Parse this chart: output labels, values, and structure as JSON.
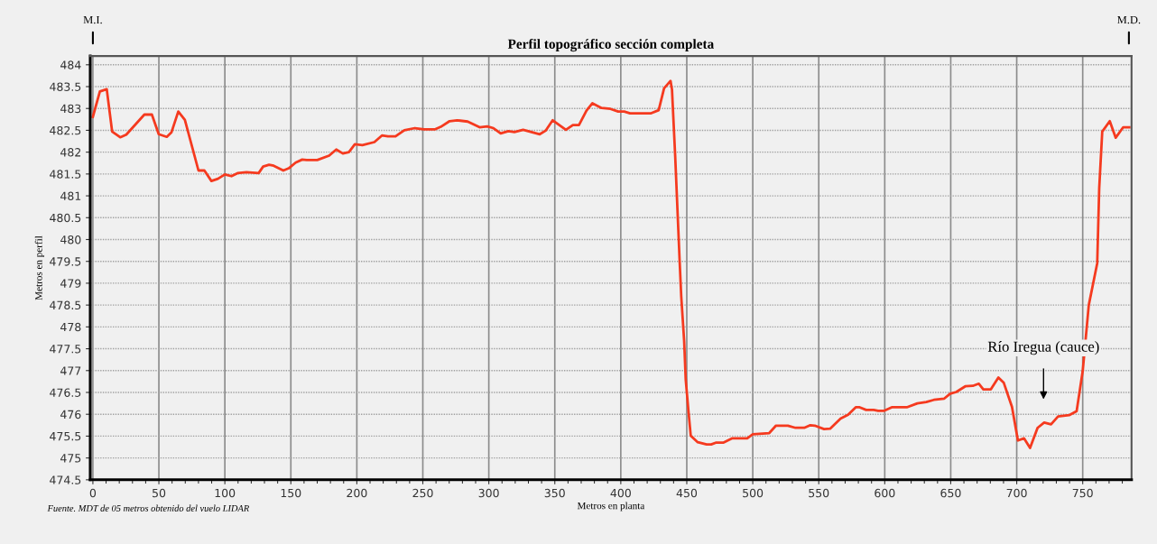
{
  "chart_data": {
    "type": "line",
    "title": "Perfil topográfico sección completa",
    "xlabel": "Metros en planta",
    "ylabel": "Metros en perfil",
    "x": [
      0,
      5.3,
      10.5,
      14.6,
      20.7,
      25.3,
      39,
      44.7,
      49.9,
      56,
      59.5,
      64.7,
      69.7,
      80,
      84.5,
      89.8,
      94.8,
      100,
      105,
      109.6,
      116.4,
      125.6,
      129,
      133.5,
      137,
      144.3,
      148.4,
      153.6,
      158.6,
      162,
      170,
      179,
      184.4,
      189.4,
      194,
      198.5,
      204.2,
      213.3,
      219,
      223.6,
      229.3,
      236,
      244,
      251,
      259,
      263.6,
      270.3,
      276,
      284,
      293,
      298.8,
      303.5,
      309,
      314.8,
      319.4,
      326,
      338.6,
      343,
      348.4,
      353.4,
      358.4,
      363.7,
      368.3,
      374,
      378.5,
      385.4,
      392.2,
      398,
      402.6,
      407,
      423,
      428.7,
      432.8,
      437.7,
      438.8,
      441.2,
      444.6,
      445.8,
      448,
      449.2,
      451.4,
      453,
      458.3,
      465,
      468.5,
      471.9,
      477.6,
      484.5,
      495.8,
      500,
      512.5,
      517.6,
      526.6,
      532.4,
      539,
      543.6,
      547,
      554,
      558.6,
      566.5,
      572.2,
      578,
      581,
      585.9,
      591.6,
      595,
      599.6,
      605.3,
      616.7,
      624.7,
      631.5,
      637.2,
      645.1,
      649.6,
      654.2,
      661,
      666.7,
      671.3,
      674.7,
      680.4,
      686.1,
      690.2,
      696.4,
      700.9,
      705.5,
      710.1,
      715.8,
      720.8,
      726,
      731.3,
      739.7,
      745.4,
      750,
      754.6,
      761,
      762.5,
      764.8,
      770.5,
      775,
      780.7,
      785.3
    ],
    "series": [
      {
        "color": "#f53a1f",
        "values": [
          482.81,
          483.39,
          483.44,
          482.47,
          482.34,
          482.4,
          482.86,
          482.86,
          482.41,
          482.35,
          482.45,
          482.93,
          482.74,
          481.58,
          481.58,
          481.34,
          481.39,
          481.49,
          481.45,
          481.52,
          481.54,
          481.52,
          481.67,
          481.71,
          481.69,
          481.58,
          481.63,
          481.76,
          481.83,
          481.82,
          481.82,
          481.92,
          482.06,
          481.97,
          482.0,
          482.18,
          482.16,
          482.23,
          482.38,
          482.36,
          482.36,
          482.5,
          482.55,
          482.52,
          482.52,
          482.58,
          482.71,
          482.73,
          482.7,
          482.57,
          482.59,
          482.55,
          482.43,
          482.48,
          482.46,
          482.51,
          482.41,
          482.49,
          482.73,
          482.62,
          482.51,
          482.62,
          482.62,
          482.95,
          483.12,
          483.01,
          482.99,
          482.93,
          482.93,
          482.89,
          482.89,
          482.96,
          483.46,
          483.63,
          483.43,
          481.92,
          479.5,
          478.7,
          477.68,
          476.79,
          476.03,
          475.51,
          475.36,
          475.31,
          475.31,
          475.35,
          475.35,
          475.45,
          475.45,
          475.54,
          475.57,
          475.74,
          475.74,
          475.69,
          475.69,
          475.75,
          475.74,
          475.66,
          475.67,
          475.9,
          475.99,
          476.16,
          476.16,
          476.1,
          476.1,
          476.08,
          476.08,
          476.16,
          476.16,
          476.25,
          476.28,
          476.33,
          476.36,
          476.47,
          476.51,
          476.64,
          476.65,
          476.7,
          476.57,
          476.57,
          476.84,
          476.72,
          476.17,
          475.4,
          475.45,
          475.23,
          475.69,
          475.81,
          475.77,
          475.95,
          475.98,
          476.07,
          476.99,
          478.5,
          479.46,
          481.17,
          482.47,
          482.71,
          482.33,
          482.57,
          482.57
        ]
      }
    ],
    "xlim": [
      -2,
      787
    ],
    "xticks": [
      0,
      50,
      100,
      150,
      200,
      250,
      300,
      350,
      400,
      450,
      500,
      550,
      600,
      650,
      700,
      750
    ],
    "ylim": [
      474.5,
      484.2
    ],
    "yticks": [
      474.5,
      475,
      475.5,
      476,
      476.5,
      477,
      477.5,
      478,
      478.5,
      479,
      479.5,
      480,
      480.5,
      481,
      481.5,
      482,
      482.5,
      483,
      483.5,
      484
    ],
    "grid": true,
    "line_style": "solid",
    "marker": "none",
    "annotations": [
      {
        "text": "M.I.",
        "x": 0
      },
      {
        "text": "M.D.",
        "x": 785
      },
      "Río Iregua (cauce)",
      "Fuente. MDT de 05 metros obtenido del vuelo LIDAR"
    ]
  }
}
